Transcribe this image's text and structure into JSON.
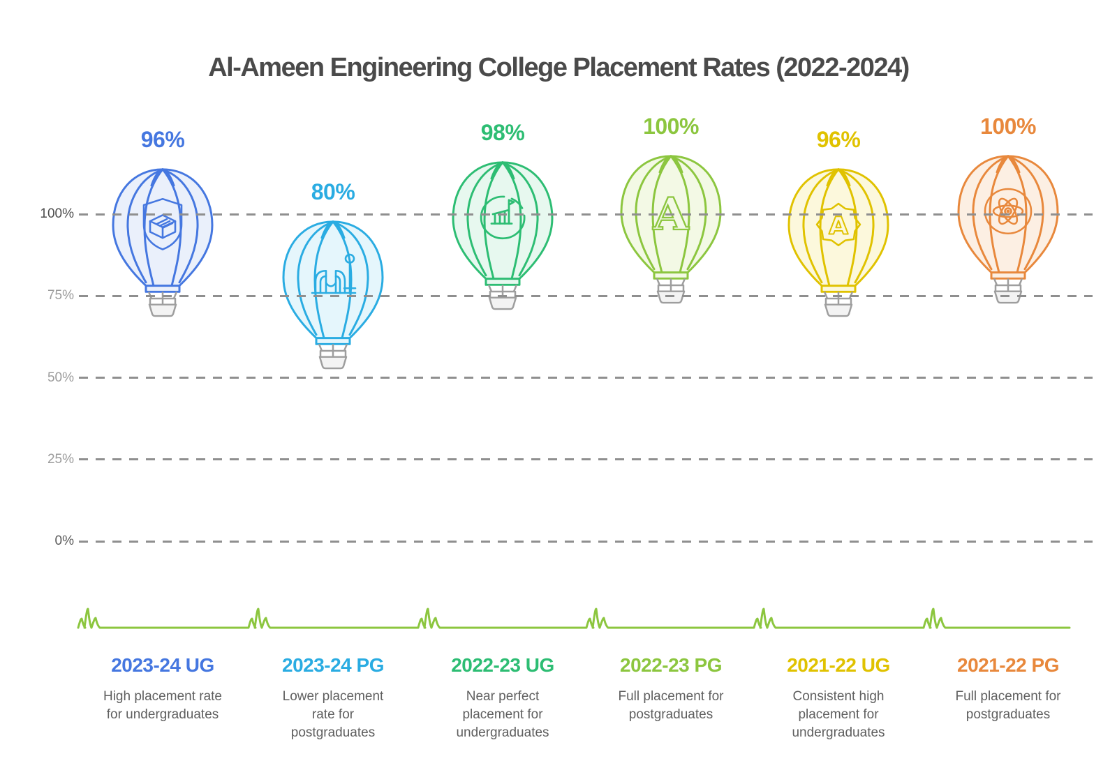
{
  "title": "Al-Ameen Engineering College Placement Rates (2022-2024)",
  "y_axis": {
    "ticks": [
      {
        "label": "100%",
        "value": 100,
        "color": "#4d4d4d"
      },
      {
        "label": "75%",
        "value": 75,
        "color": "#9b9b9b"
      },
      {
        "label": "50%",
        "value": 50,
        "color": "#9b9b9b"
      },
      {
        "label": "25%",
        "value": 25,
        "color": "#9b9b9b"
      },
      {
        "label": "0%",
        "value": 0,
        "color": "#5a5a5a"
      }
    ]
  },
  "columns": [
    {
      "value": 96,
      "value_label": "96%",
      "category": "2023-24 UG",
      "description": "High placement rate\nfor undergraduates",
      "color": "#4577E0",
      "fill": "#EAF0FB",
      "icon": "shield-package-icon"
    },
    {
      "value": 80,
      "value_label": "80%",
      "category": "2023-24 PG",
      "description": "Lower placement\nrate for\npostgraduates",
      "color": "#2AACE2",
      "fill": "#E5F6FC",
      "icon": "machinery-icon"
    },
    {
      "value": 98,
      "value_label": "98%",
      "category": "2022-23 UG",
      "description": "Near perfect\nplacement for\nundergraduates",
      "color": "#2DBD73",
      "fill": "#E7F8EF",
      "icon": "building-chart-icon"
    },
    {
      "value": 100,
      "value_label": "100%",
      "category": "2022-23 PG",
      "description": "Full placement for\npostgraduates",
      "color": "#8CC63F",
      "fill": "#F3F9E5",
      "icon": "letter-a-icon"
    },
    {
      "value": 96,
      "value_label": "96%",
      "category": "2021-22 UG",
      "description": "Consistent high\nplacement for\nundergraduates",
      "color": "#E0C200",
      "fill": "#FCF8DC",
      "icon": "badge-a-icon"
    },
    {
      "value": 100,
      "value_label": "100%",
      "category": "2021-22 PG",
      "description": "Full placement for\npostgraduates",
      "color": "#E8883C",
      "fill": "#FCEFE3",
      "icon": "atom-icon"
    }
  ],
  "decor": {
    "grass_color": "#8CC63F",
    "gridline_color": "#8f8f8f",
    "basket_stroke": "#9e9e9e",
    "basket_fill": "#f3f3f3"
  },
  "chart_data": {
    "type": "bar",
    "title": "Al-Ameen Engineering College Placement Rates (2022-2024)",
    "categories": [
      "2023-24 UG",
      "2023-24 PG",
      "2022-23 UG",
      "2022-23 PG",
      "2021-22 UG",
      "2021-22 PG"
    ],
    "values": [
      96,
      80,
      98,
      100,
      96,
      100
    ],
    "data_labels": [
      "96%",
      "80%",
      "98%",
      "100%",
      "96%",
      "100%"
    ],
    "annotations": [
      "High placement rate for undergraduates",
      "Lower placement rate for postgraduates",
      "Near perfect placement for undergraduates",
      "Full placement for postgraduates",
      "Consistent high placement for undergraduates",
      "Full placement for postgraduates"
    ],
    "series_colors": [
      "#4577E0",
      "#2AACE2",
      "#2DBD73",
      "#8CC63F",
      "#E0C200",
      "#E8883C"
    ],
    "xlabel": "",
    "ylabel": "",
    "ylim": [
      0,
      100
    ],
    "yticks": [
      0,
      25,
      50,
      75,
      100
    ],
    "ytick_labels": [
      "0%",
      "25%",
      "50%",
      "75%",
      "100%"
    ],
    "grid": "horizontal-dashed",
    "legend": "none",
    "marker": "hot-air-balloon"
  }
}
